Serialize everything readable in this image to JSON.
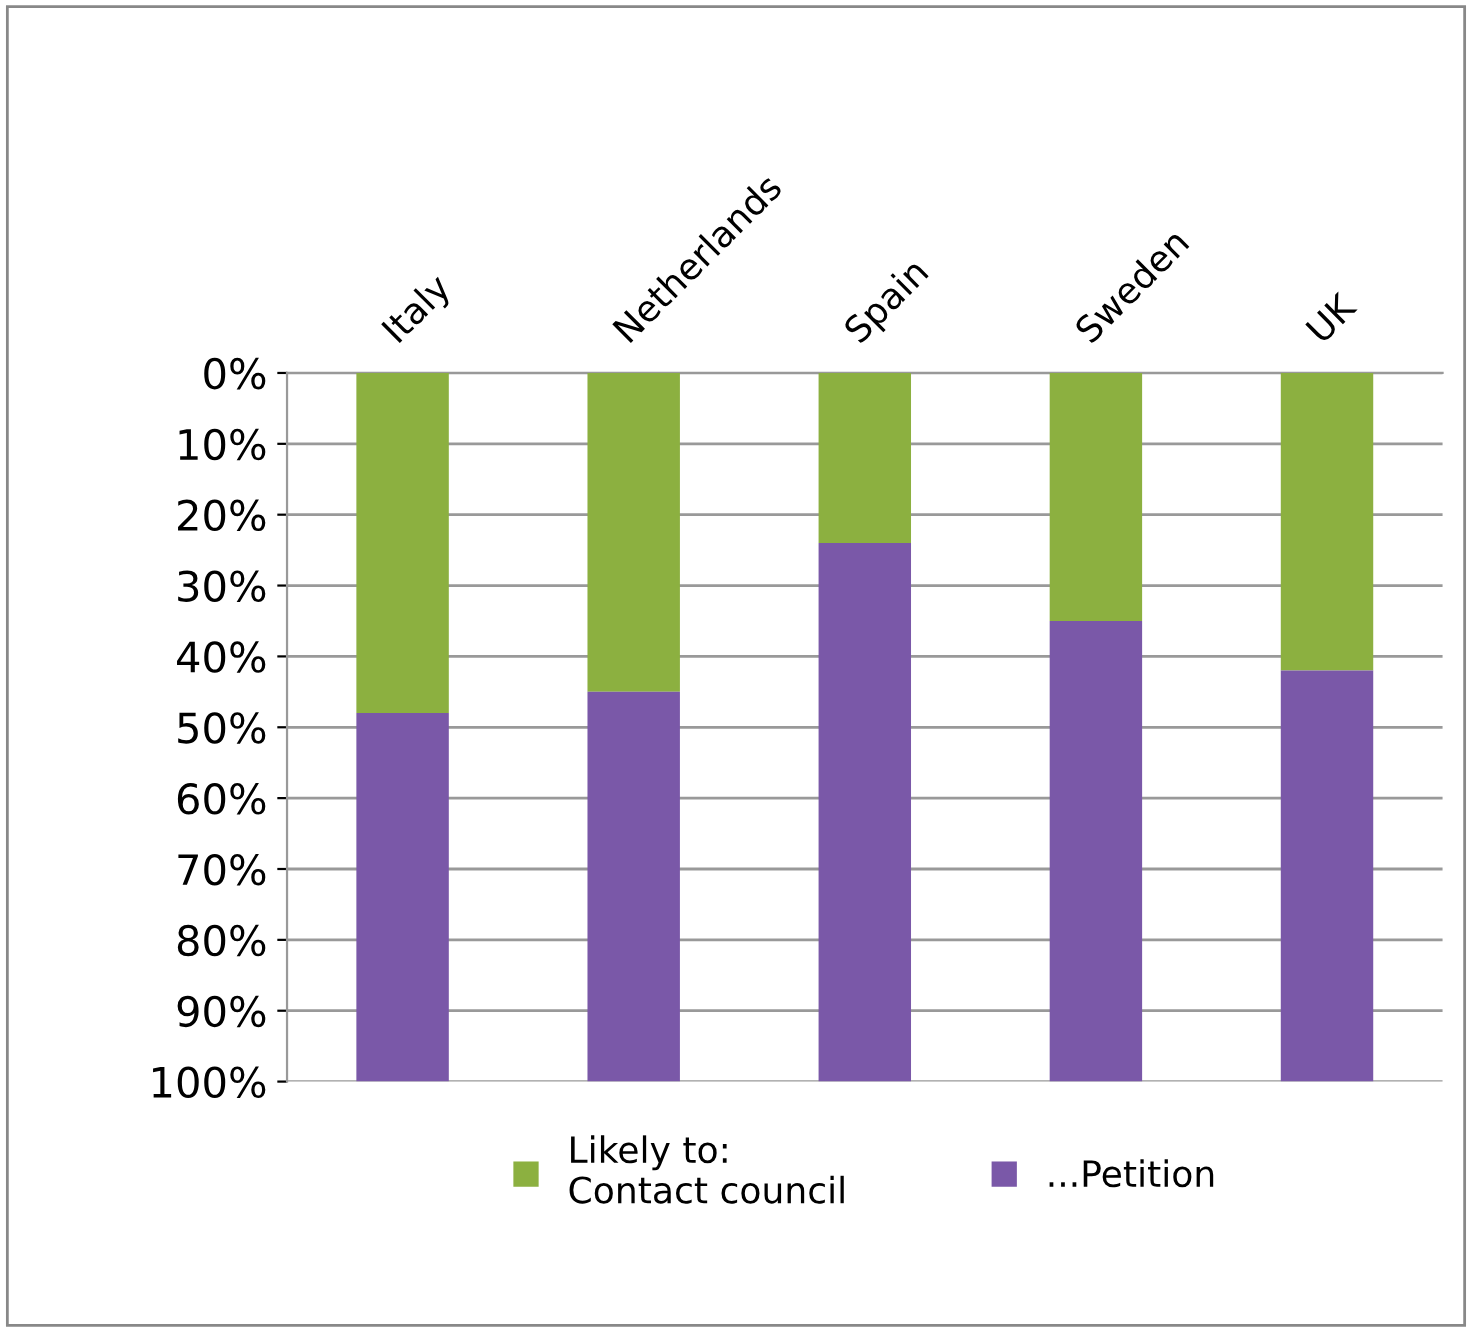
{
  "chart_data": {
    "type": "bar",
    "stacked": true,
    "categories": [
      "Italy",
      "Netherlands",
      "Spain",
      "Sweden",
      "UK"
    ],
    "series": [
      {
        "name": "Likely to:\nContact council",
        "color": "#8cb040",
        "values": [
          48,
          45,
          24,
          35,
          42
        ]
      },
      {
        "name": "...Petition",
        "color": "#7a58a8",
        "values": [
          52,
          55,
          76,
          65,
          58
        ]
      }
    ],
    "ylim": [
      100,
      0
    ],
    "yticks": [
      {
        "value": 0,
        "label": "0%"
      },
      {
        "value": 10,
        "label": "10%"
      },
      {
        "value": 20,
        "label": "20%"
      },
      {
        "value": 30,
        "label": "30%"
      },
      {
        "value": 40,
        "label": "40%"
      },
      {
        "value": 50,
        "label": "50%"
      },
      {
        "value": 60,
        "label": "60%"
      },
      {
        "value": 70,
        "label": "70%"
      },
      {
        "value": 80,
        "label": "80%"
      },
      {
        "value": 90,
        "label": "90%"
      },
      {
        "value": 100,
        "label": "100%"
      }
    ],
    "grid": "y",
    "legend": "bottom"
  }
}
